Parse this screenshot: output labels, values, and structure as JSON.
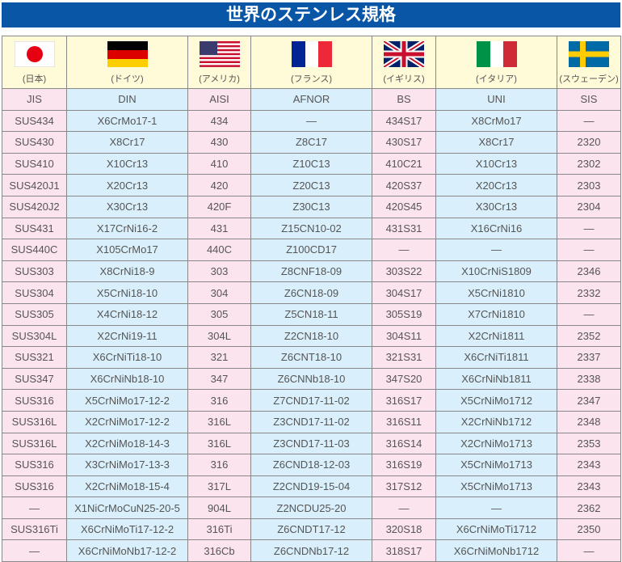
{
  "title": "世界のステンレス規格",
  "countries": [
    {
      "flag": "japan-flag",
      "label": "(日本)"
    },
    {
      "flag": "germany-flag",
      "label": "(ドイツ)"
    },
    {
      "flag": "usa-flag",
      "label": "(アメリカ)"
    },
    {
      "flag": "france-flag",
      "label": "(フランス)"
    },
    {
      "flag": "uk-flag",
      "label": "(イギリス)"
    },
    {
      "flag": "italy-flag",
      "label": "(イタリア)"
    },
    {
      "flag": "sweden-flag",
      "label": "(スウェーデン)"
    }
  ],
  "headers": [
    "JIS",
    "DIN",
    "AISI",
    "AFNOR",
    "BS",
    "UNI",
    "SIS"
  ],
  "colors": {
    "title_bg": "#0a56a6",
    "pink": "#fce4ee",
    "blue": "#d9effb",
    "flag_row": "#fffbd8"
  },
  "rows": [
    [
      "SUS434",
      "X6CrMo17-1",
      "434",
      "—",
      "434S17",
      "X8CrMo17",
      "—"
    ],
    [
      "SUS430",
      "X8Cr17",
      "430",
      "Z8C17",
      "430S17",
      "X8Cr17",
      "2320"
    ],
    [
      "SUS410",
      "X10Cr13",
      "410",
      "Z10C13",
      "410C21",
      "X10Cr13",
      "2302"
    ],
    [
      "SUS420J1",
      "X20Cr13",
      "420",
      "Z20C13",
      "420S37",
      "X20Cr13",
      "2303"
    ],
    [
      "SUS420J2",
      "X30Cr13",
      "420F",
      "Z30C13",
      "420S45",
      "X30Cr13",
      "2304"
    ],
    [
      "SUS431",
      "X17CrNi16-2",
      "431",
      "Z15CN10-02",
      "431S31",
      "X16CrNi16",
      "—"
    ],
    [
      "SUS440C",
      "X105CrMo17",
      "440C",
      "Z100CD17",
      "—",
      "—",
      "—"
    ],
    [
      "SUS303",
      "X8CrNi18-9",
      "303",
      "Z8CNF18-09",
      "303S22",
      "X10CrNiS1809",
      "2346"
    ],
    [
      "SUS304",
      "X5CrNi18-10",
      "304",
      "Z6CN18-09",
      "304S17",
      "X5CrNi1810",
      "2332"
    ],
    [
      "SUS305",
      "X4CrNi18-12",
      "305",
      "Z5CN18-11",
      "305S19",
      "X7CrNi1810",
      "—"
    ],
    [
      "SUS304L",
      "X2CrNi19-11",
      "304L",
      "Z2CN18-10",
      "304S11",
      "X2CrNi1811",
      "2352"
    ],
    [
      "SUS321",
      "X6CrNiTi18-10",
      "321",
      "Z6CNT18-10",
      "321S31",
      "X6CrNiTi1811",
      "2337"
    ],
    [
      "SUS347",
      "X6CrNiNb18-10",
      "347",
      "Z6CNNb18-10",
      "347S20",
      "X6CrNiNb1811",
      "2338"
    ],
    [
      "SUS316",
      "X5CrNiMo17-12-2",
      "316",
      "Z7CND17-11-02",
      "316S17",
      "X5CrNiMo1712",
      "2347"
    ],
    [
      "SUS316L",
      "X2CrNiMo17-12-2",
      "316L",
      "Z3CND17-11-02",
      "316S11",
      "X2CrNiNb1712",
      "2348"
    ],
    [
      "SUS316L",
      "X2CrNiMo18-14-3",
      "316L",
      "Z3CND17-11-03",
      "316S14",
      "X2CrNiMo1713",
      "2353"
    ],
    [
      "SUS316",
      "X3CrNiMo17-13-3",
      "316",
      "Z6CND18-12-03",
      "316S19",
      "X5CrNiMo1713",
      "2343"
    ],
    [
      "SUS316",
      "X2CrNiMo18-15-4",
      "317L",
      "Z2CND19-15-04",
      "317S12",
      "X5CrNiMo1713",
      "2343"
    ],
    [
      "—",
      "X1NiCrMoCuN25-20-5",
      "904L",
      "Z2NCDU25-20",
      "—",
      "—",
      "2362"
    ],
    [
      "SUS316Ti",
      "X6CrNiMoTi17-12-2",
      "316Ti",
      "Z6CNDT17-12",
      "320S18",
      "X6CrNiMoTi1712",
      "2350"
    ],
    [
      "—",
      "X6CrNiMoNb17-12-2",
      "316Cb",
      "Z6CNDNb17-12",
      "318S17",
      "X6CrNiMoNb1712",
      "—"
    ]
  ]
}
